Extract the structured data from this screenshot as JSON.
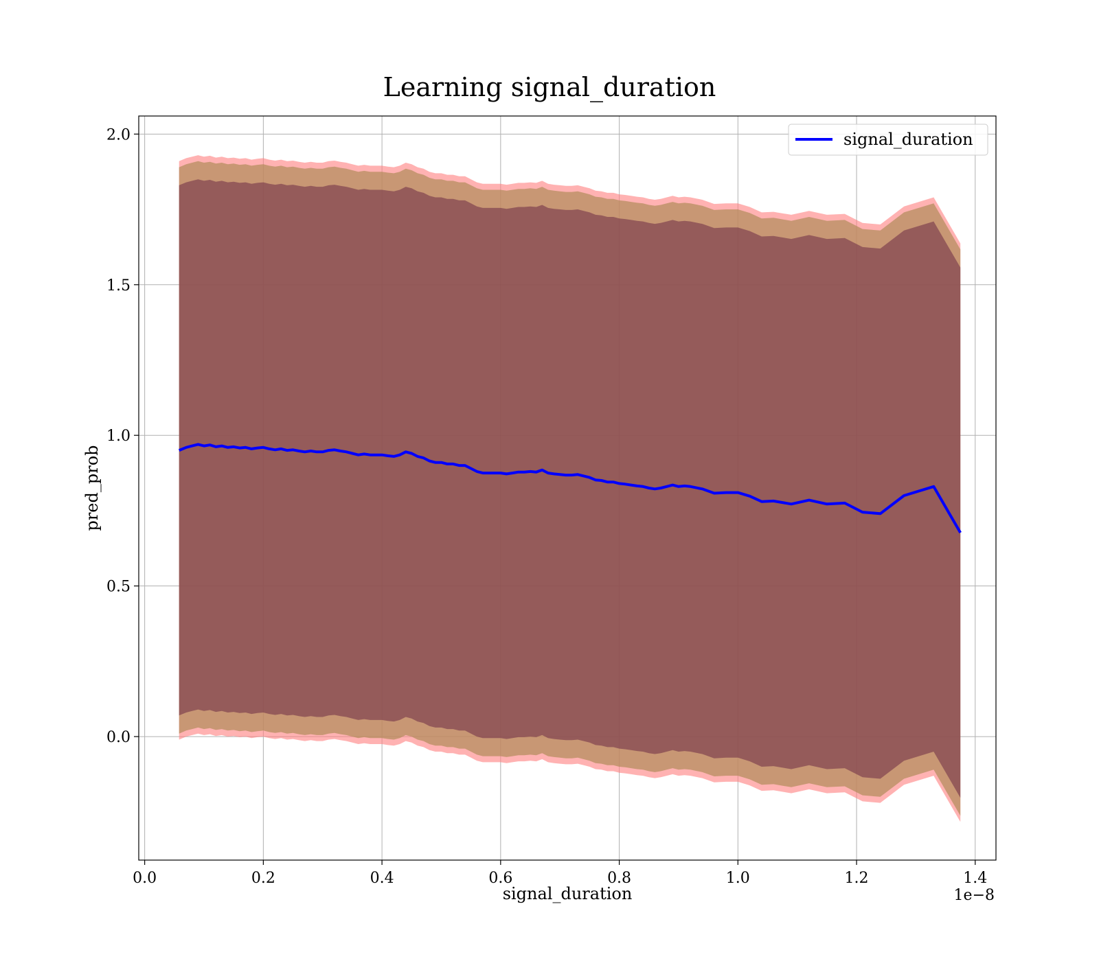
{
  "chart_data": {
    "type": "line",
    "title": "Learning signal_duration",
    "xlabel": "signal_duration",
    "ylabel": "pred_prob",
    "x_offset_text": "1e−8",
    "xlim": [
      -0.01,
      1.435
    ],
    "ylim": [
      -0.41,
      2.06
    ],
    "x_ticks": [
      0.0,
      0.2,
      0.4,
      0.6,
      0.8,
      1.0,
      1.2,
      1.4
    ],
    "x_tick_labels": [
      "0.0",
      "0.2",
      "0.4",
      "0.6",
      "0.8",
      "1.0",
      "1.2",
      "1.4"
    ],
    "y_ticks": [
      0.0,
      0.5,
      1.0,
      1.5,
      2.0
    ],
    "y_tick_labels": [
      "0.0",
      "0.5",
      "1.0",
      "1.5",
      "2.0"
    ],
    "grid": true,
    "legend_position": "top-right",
    "colors": {
      "line": "#0000ff",
      "band_outer": "#ff7f7f",
      "band_middle": "#b08b5a",
      "band_inner": "#6b2a45"
    },
    "series": [
      {
        "name": "signal_duration",
        "x": [
          0.058,
          0.07,
          0.08,
          0.09,
          0.1,
          0.11,
          0.12,
          0.13,
          0.14,
          0.15,
          0.16,
          0.17,
          0.18,
          0.19,
          0.2,
          0.21,
          0.22,
          0.23,
          0.24,
          0.25,
          0.26,
          0.27,
          0.28,
          0.29,
          0.3,
          0.31,
          0.32,
          0.33,
          0.34,
          0.35,
          0.36,
          0.37,
          0.38,
          0.39,
          0.4,
          0.41,
          0.42,
          0.43,
          0.44,
          0.45,
          0.46,
          0.47,
          0.48,
          0.49,
          0.5,
          0.51,
          0.52,
          0.53,
          0.54,
          0.55,
          0.56,
          0.57,
          0.58,
          0.59,
          0.6,
          0.61,
          0.62,
          0.63,
          0.64,
          0.65,
          0.66,
          0.67,
          0.68,
          0.69,
          0.7,
          0.71,
          0.72,
          0.73,
          0.74,
          0.75,
          0.76,
          0.77,
          0.78,
          0.79,
          0.8,
          0.81,
          0.82,
          0.83,
          0.84,
          0.85,
          0.86,
          0.87,
          0.88,
          0.89,
          0.9,
          0.91,
          0.92,
          0.93,
          0.94,
          0.96,
          0.98,
          1.0,
          1.02,
          1.04,
          1.06,
          1.09,
          1.12,
          1.15,
          1.18,
          1.21,
          1.24,
          1.28,
          1.33,
          1.375
        ],
        "y": [
          0.95,
          0.96,
          0.965,
          0.97,
          0.965,
          0.968,
          0.962,
          0.965,
          0.96,
          0.962,
          0.958,
          0.96,
          0.955,
          0.958,
          0.96,
          0.955,
          0.952,
          0.955,
          0.95,
          0.952,
          0.948,
          0.945,
          0.948,
          0.945,
          0.945,
          0.95,
          0.952,
          0.948,
          0.945,
          0.94,
          0.935,
          0.938,
          0.935,
          0.935,
          0.935,
          0.932,
          0.93,
          0.935,
          0.945,
          0.94,
          0.93,
          0.925,
          0.915,
          0.91,
          0.91,
          0.905,
          0.905,
          0.9,
          0.9,
          0.89,
          0.88,
          0.875,
          0.875,
          0.875,
          0.875,
          0.872,
          0.875,
          0.878,
          0.878,
          0.88,
          0.878,
          0.885,
          0.875,
          0.872,
          0.87,
          0.868,
          0.868,
          0.87,
          0.865,
          0.86,
          0.852,
          0.85,
          0.845,
          0.845,
          0.84,
          0.838,
          0.835,
          0.832,
          0.83,
          0.825,
          0.822,
          0.825,
          0.83,
          0.835,
          0.83,
          0.832,
          0.83,
          0.826,
          0.822,
          0.808,
          0.81,
          0.81,
          0.798,
          0.78,
          0.782,
          0.772,
          0.785,
          0.772,
          0.775,
          0.745,
          0.74,
          0.8,
          0.83,
          0.677
        ],
        "band_offsets": {
          "outer": 0.96,
          "middle": 0.94,
          "inner": 0.88
        }
      }
    ]
  }
}
